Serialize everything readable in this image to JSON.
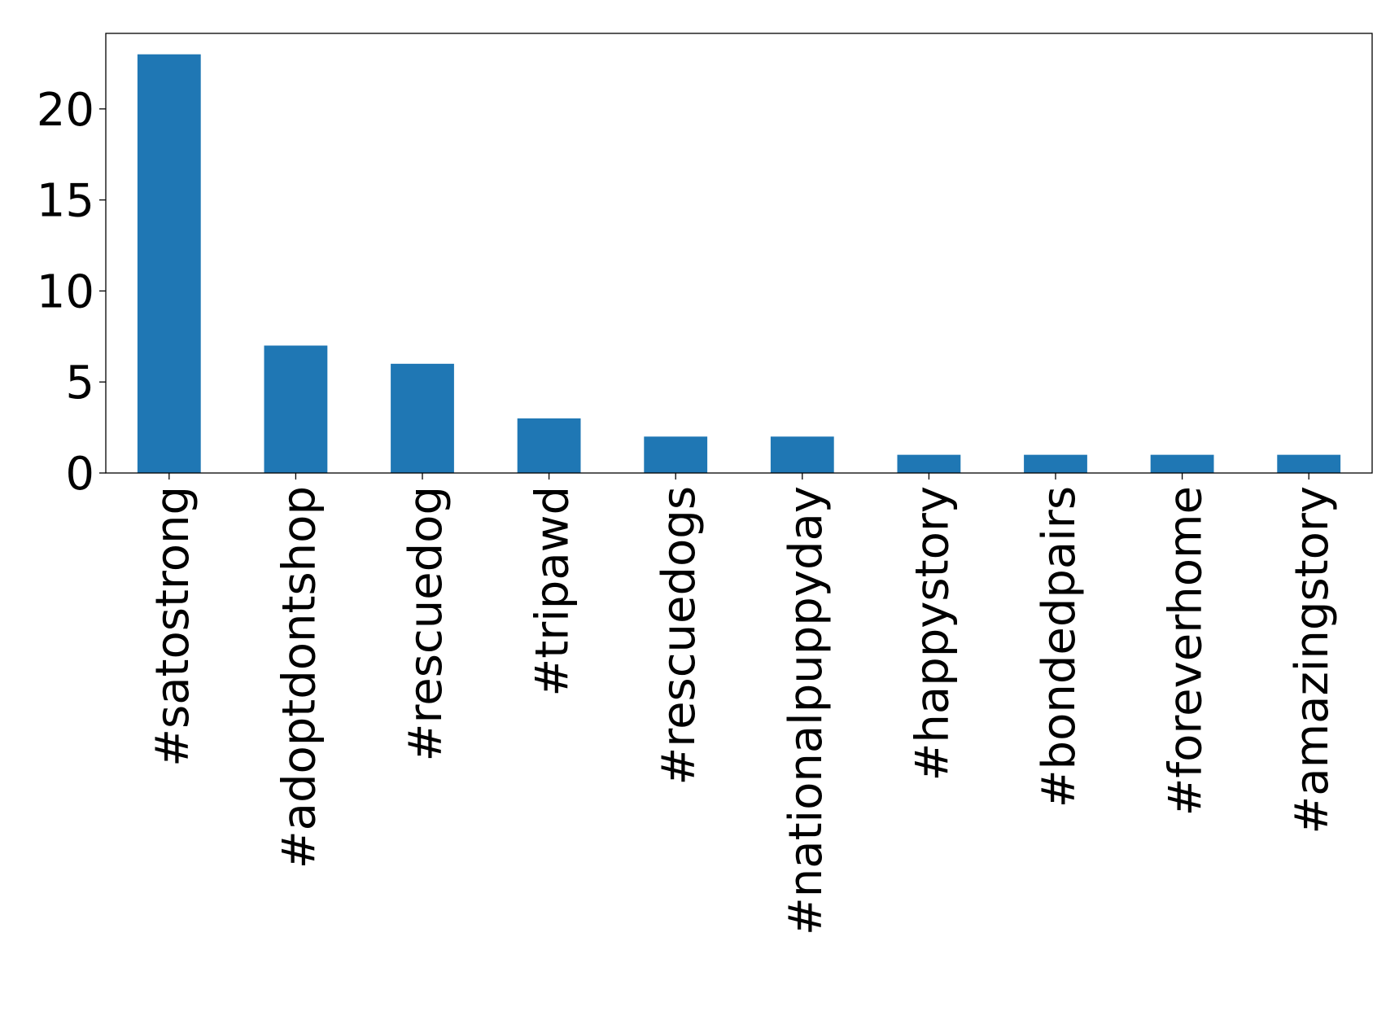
{
  "chart_data": {
    "type": "bar",
    "title": "",
    "xlabel": "",
    "ylabel": "",
    "categories": [
      "#satostrong",
      "#adoptdontshop",
      "#rescuedog",
      "#tripawd",
      "#rescuedogs",
      "#nationalpuppyday",
      "#happystory",
      "#bondedpairs",
      "#foreverhome",
      "#amazingstory"
    ],
    "values": [
      23,
      7,
      6,
      3,
      2,
      2,
      1,
      1,
      1,
      1
    ],
    "ylim": [
      0,
      24.15
    ],
    "yticks": [
      0,
      5,
      10,
      15,
      20
    ],
    "bar_color": "#1f77b4",
    "grid": false,
    "legend": "none"
  }
}
